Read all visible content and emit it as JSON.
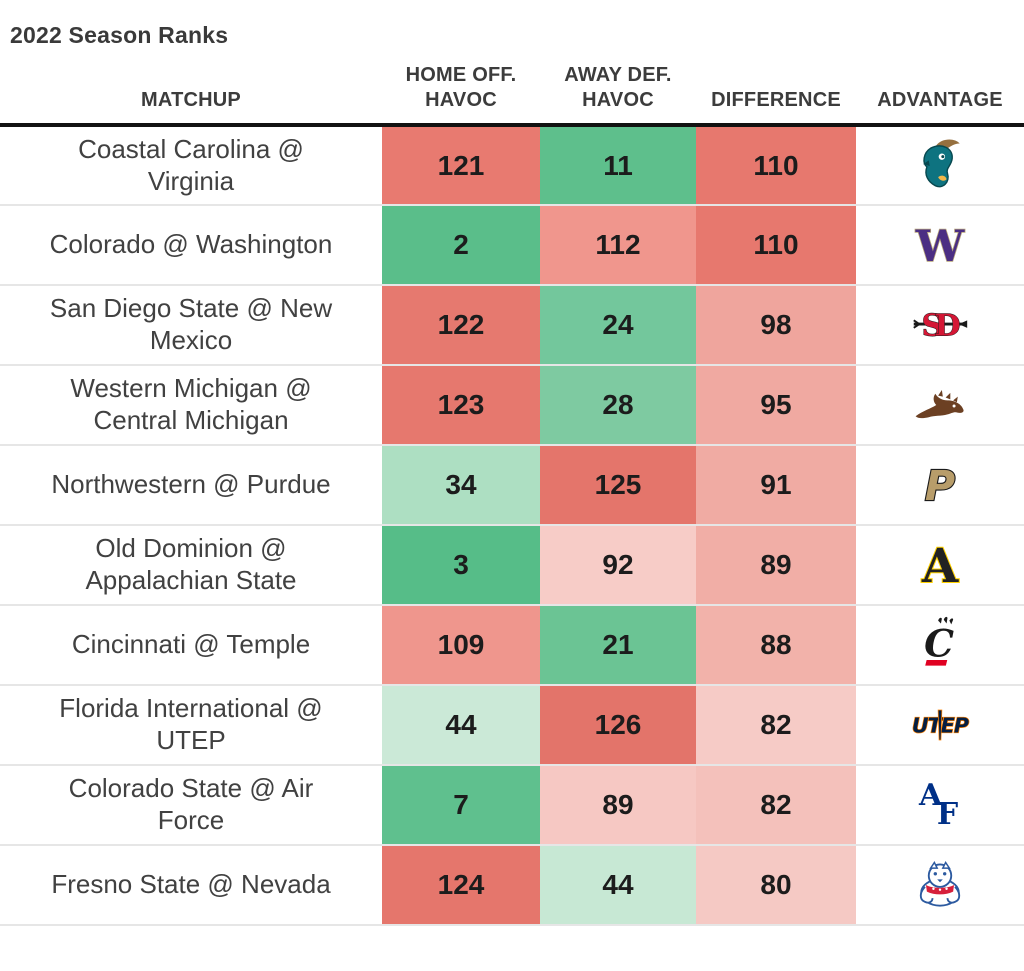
{
  "title": "2022 Season Ranks",
  "colors": {
    "header_text": "#3c3c3c",
    "matchup_text": "#414141",
    "number_text": "#1c1c1c",
    "header_rule": "#121212",
    "row_divider": "#e6e6e6"
  },
  "table": {
    "headers": {
      "matchup": "MATCHUP",
      "home_line1": "HOME OFF.",
      "home_line2": "HAVOC",
      "away_line1": "AWAY DEF.",
      "away_line2": "HAVOC",
      "difference": "DIFFERENCE",
      "advantage": "ADVANTAGE"
    },
    "rows": [
      {
        "matchup": "Coastal Carolina @ Virginia",
        "home": {
          "value": 121,
          "color": "#e87a70"
        },
        "away": {
          "value": 11,
          "color": "#5ebf8c"
        },
        "diff": {
          "value": 110,
          "color": "#e7786e"
        },
        "advantage": {
          "team": "Coastal Carolina",
          "logo": "coastal-carolina",
          "colors": {
            "primary": "#0e7380",
            "secondary": "#96703f",
            "accent": "#f2b749"
          }
        }
      },
      {
        "matchup": "Colorado @ Washington",
        "home": {
          "value": 2,
          "color": "#5abe8a"
        },
        "away": {
          "value": 112,
          "color": "#f0968d"
        },
        "diff": {
          "value": 110,
          "color": "#e7786e"
        },
        "advantage": {
          "team": "Washington",
          "logo": "washington",
          "colors": {
            "primary": "#4b2e83",
            "secondary": "#b7a57a",
            "accent": "#ffffff"
          }
        }
      },
      {
        "matchup": "San Diego State @ New Mexico",
        "home": {
          "value": 122,
          "color": "#e6796f"
        },
        "away": {
          "value": 24,
          "color": "#73c79c"
        },
        "diff": {
          "value": 98,
          "color": "#efa59d"
        },
        "advantage": {
          "team": "San Diego State",
          "logo": "san-diego-state",
          "colors": {
            "primary": "#d41735",
            "secondary": "#1a1a1a",
            "accent": "#ffffff"
          }
        }
      },
      {
        "matchup": "Western Michigan @ Central Michigan",
        "home": {
          "value": 123,
          "color": "#e6786e"
        },
        "away": {
          "value": 28,
          "color": "#7ecaa1"
        },
        "diff": {
          "value": 95,
          "color": "#f0a9a1"
        },
        "advantage": {
          "team": "Western Michigan",
          "logo": "western-michigan",
          "colors": {
            "primary": "#6c4023",
            "secondary": "#ffffff",
            "accent": "#6c4023"
          }
        }
      },
      {
        "matchup": "Northwestern @ Purdue",
        "home": {
          "value": 34,
          "color": "#addfc2"
        },
        "away": {
          "value": 125,
          "color": "#e4756b"
        },
        "diff": {
          "value": 91,
          "color": "#f0aba3"
        },
        "advantage": {
          "team": "Purdue",
          "logo": "purdue",
          "colors": {
            "primary": "#b89d6a",
            "secondary": "#1a1a1a",
            "accent": "#ffffff"
          }
        }
      },
      {
        "matchup": "Old Dominion @ Appalachian State",
        "home": {
          "value": 3,
          "color": "#56bd88"
        },
        "away": {
          "value": 92,
          "color": "#f7ccc7"
        },
        "diff": {
          "value": 89,
          "color": "#f1aea6"
        },
        "advantage": {
          "team": "Appalachian State",
          "logo": "appalachian-state",
          "colors": {
            "primary": "#222222",
            "secondary": "#ffd200",
            "accent": "#ffffff"
          }
        }
      },
      {
        "matchup": "Cincinnati @ Temple",
        "home": {
          "value": 109,
          "color": "#ef968d"
        },
        "away": {
          "value": 21,
          "color": "#6bc494"
        },
        "diff": {
          "value": 88,
          "color": "#f2b2aa"
        },
        "advantage": {
          "team": "Cincinnati",
          "logo": "cincinnati",
          "colors": {
            "primary": "#1a1a1a",
            "secondary": "#e00122",
            "accent": "#ffffff"
          }
        }
      },
      {
        "matchup": "Florida International @ UTEP",
        "home": {
          "value": 44,
          "color": "#cbe9d7"
        },
        "away": {
          "value": 126,
          "color": "#e3746a"
        },
        "diff": {
          "value": 82,
          "color": "#f6cbc6"
        },
        "advantage": {
          "team": "UTEP",
          "logo": "utep",
          "colors": {
            "primary": "#041e42",
            "secondary": "#ff8200",
            "accent": "#ffffff"
          }
        }
      },
      {
        "matchup": "Colorado State @ Air Force",
        "home": {
          "value": 7,
          "color": "#5fc08e"
        },
        "away": {
          "value": 89,
          "color": "#f6c8c3"
        },
        "diff": {
          "value": 82,
          "color": "#f4c1bb"
        },
        "advantage": {
          "team": "Air Force",
          "logo": "air-force",
          "colors": {
            "primary": "#003087",
            "secondary": "#003087",
            "accent": "#ffffff"
          }
        }
      },
      {
        "matchup": "Fresno State @ Nevada",
        "home": {
          "value": 124,
          "color": "#e5766c"
        },
        "away": {
          "value": 44,
          "color": "#c7e8d4"
        },
        "diff": {
          "value": 80,
          "color": "#f5c9c4"
        },
        "advantage": {
          "team": "Fresno State",
          "logo": "fresno-state",
          "colors": {
            "primary": "#2c5aa0",
            "secondary": "#d6203c",
            "accent": "#ffffff"
          }
        }
      }
    ]
  },
  "chart_data": {
    "type": "table",
    "title": "2022 Season Ranks",
    "columns": [
      "MATCHUP",
      "HOME OFF. HAVOC",
      "AWAY DEF. HAVOC",
      "DIFFERENCE",
      "ADVANTAGE"
    ],
    "rows": [
      {
        "matchup": "Coastal Carolina @ Virginia",
        "home_off_havoc": 121,
        "away_def_havoc": 11,
        "difference": 110,
        "advantage_team": "Coastal Carolina"
      },
      {
        "matchup": "Colorado @ Washington",
        "home_off_havoc": 2,
        "away_def_havoc": 112,
        "difference": 110,
        "advantage_team": "Washington"
      },
      {
        "matchup": "San Diego State @ New Mexico",
        "home_off_havoc": 122,
        "away_def_havoc": 24,
        "difference": 98,
        "advantage_team": "San Diego State"
      },
      {
        "matchup": "Western Michigan @ Central Michigan",
        "home_off_havoc": 123,
        "away_def_havoc": 28,
        "difference": 95,
        "advantage_team": "Western Michigan"
      },
      {
        "matchup": "Northwestern @ Purdue",
        "home_off_havoc": 34,
        "away_def_havoc": 125,
        "difference": 91,
        "advantage_team": "Purdue"
      },
      {
        "matchup": "Old Dominion @ Appalachian State",
        "home_off_havoc": 3,
        "away_def_havoc": 92,
        "difference": 89,
        "advantage_team": "Appalachian State"
      },
      {
        "matchup": "Cincinnati @ Temple",
        "home_off_havoc": 109,
        "away_def_havoc": 21,
        "difference": 88,
        "advantage_team": "Cincinnati"
      },
      {
        "matchup": "Florida International @ UTEP",
        "home_off_havoc": 44,
        "away_def_havoc": 126,
        "difference": 82,
        "advantage_team": "UTEP"
      },
      {
        "matchup": "Colorado State @ Air Force",
        "home_off_havoc": 7,
        "away_def_havoc": 89,
        "difference": 82,
        "advantage_team": "Air Force"
      },
      {
        "matchup": "Fresno State @ Nevada",
        "home_off_havoc": 124,
        "away_def_havoc": 44,
        "difference": 80,
        "advantage_team": "Fresno State"
      }
    ],
    "notes": "Cell colors encode rank heatmap: green = good (low rank number), red = bad (high rank number)."
  }
}
